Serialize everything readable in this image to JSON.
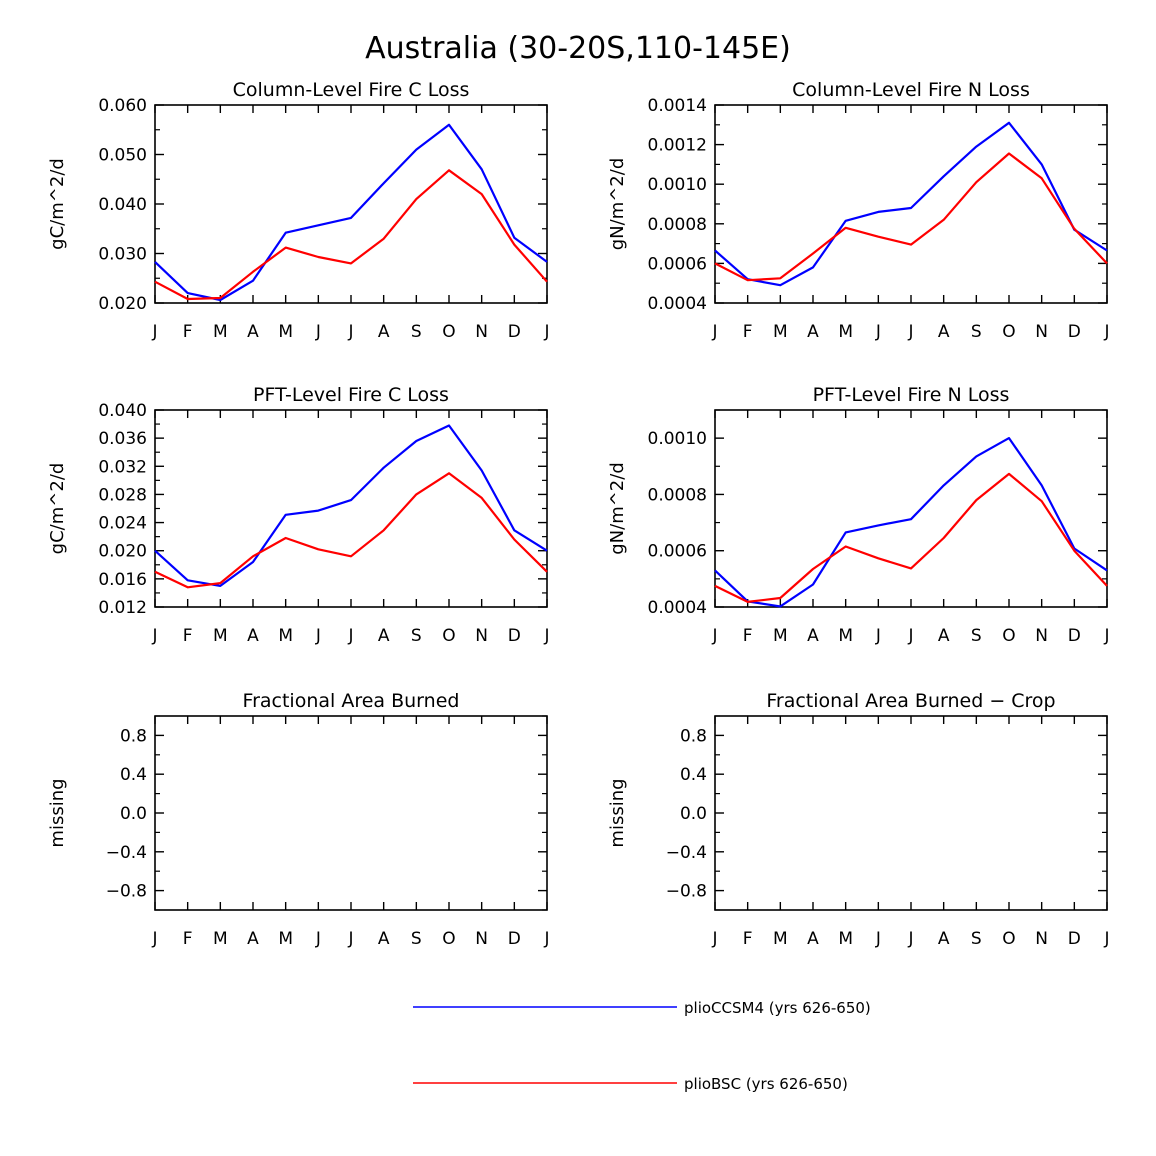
{
  "figure": {
    "title": "Australia (30-20S,110-145E)"
  },
  "series_styles": [
    {
      "name": "plioCCSM4 (yrs 626-650)",
      "color": "#0000ff"
    },
    {
      "name": "plioBSC (yrs 626-650)",
      "color": "#ff0000"
    }
  ],
  "chart_data": [
    {
      "type": "line",
      "title": "Column-Level Fire C Loss",
      "ylabel": "gC/m^2/d",
      "categories": [
        "J",
        "F",
        "M",
        "A",
        "M",
        "J",
        "J",
        "A",
        "S",
        "O",
        "N",
        "D",
        "J"
      ],
      "ylim": [
        0.02,
        0.06
      ],
      "yticks": [
        0.02,
        0.03,
        0.04,
        0.05,
        0.06
      ],
      "ytick_labels": [
        "0.020",
        "0.030",
        "0.040",
        "0.050",
        "0.060"
      ],
      "series": [
        {
          "name": "plioCCSM4 (yrs 626-650)",
          "values": [
            0.0283,
            0.022,
            0.0206,
            0.0245,
            0.0342,
            0.0357,
            0.0372,
            0.0442,
            0.051,
            0.056,
            0.047,
            0.0332,
            0.0283
          ]
        },
        {
          "name": "plioBSC (yrs 626-650)",
          "values": [
            0.0243,
            0.0208,
            0.021,
            0.0263,
            0.0312,
            0.0293,
            0.028,
            0.033,
            0.041,
            0.0468,
            0.042,
            0.0318,
            0.0243
          ]
        }
      ]
    },
    {
      "type": "line",
      "title": "Column-Level Fire N Loss",
      "ylabel": "gN/m^2/d",
      "categories": [
        "J",
        "F",
        "M",
        "A",
        "M",
        "J",
        "J",
        "A",
        "S",
        "O",
        "N",
        "D",
        "J"
      ],
      "ylim": [
        0.0004,
        0.0014
      ],
      "yticks": [
        0.0004,
        0.0006,
        0.0008,
        0.001,
        0.0012,
        0.0014
      ],
      "ytick_labels": [
        "0.0004",
        "0.0006",
        "0.0008",
        "0.0010",
        "0.0012",
        "0.0014"
      ],
      "series": [
        {
          "name": "plioCCSM4 (yrs 626-650)",
          "values": [
            0.000665,
            0.00052,
            0.00049,
            0.00058,
            0.000815,
            0.00086,
            0.00088,
            0.00104,
            0.00119,
            0.00131,
            0.0011,
            0.00077,
            0.000665
          ]
        },
        {
          "name": "plioBSC (yrs 626-650)",
          "values": [
            0.0006,
            0.000515,
            0.000525,
            0.00065,
            0.00078,
            0.000735,
            0.000695,
            0.00082,
            0.00101,
            0.001155,
            0.00103,
            0.000775,
            0.0006
          ]
        }
      ]
    },
    {
      "type": "line",
      "title": "PFT-Level Fire C Loss",
      "ylabel": "gC/m^2/d",
      "categories": [
        "J",
        "F",
        "M",
        "A",
        "M",
        "J",
        "J",
        "A",
        "S",
        "O",
        "N",
        "D",
        "J"
      ],
      "ylim": [
        0.012,
        0.04
      ],
      "yticks": [
        0.012,
        0.016,
        0.02,
        0.024,
        0.028,
        0.032,
        0.036,
        0.04
      ],
      "ytick_labels": [
        "0.012",
        "0.016",
        "0.020",
        "0.024",
        "0.028",
        "0.032",
        "0.036",
        "0.040"
      ],
      "series": [
        {
          "name": "plioCCSM4 (yrs 626-650)",
          "values": [
            0.02,
            0.0158,
            0.015,
            0.0184,
            0.0251,
            0.0257,
            0.0272,
            0.0318,
            0.0356,
            0.0378,
            0.0314,
            0.0229,
            0.02
          ]
        },
        {
          "name": "plioBSC (yrs 626-650)",
          "values": [
            0.017,
            0.0148,
            0.0154,
            0.0192,
            0.0218,
            0.0202,
            0.0192,
            0.0229,
            0.028,
            0.031,
            0.0275,
            0.0216,
            0.017
          ]
        }
      ]
    },
    {
      "type": "line",
      "title": "PFT-Level Fire N Loss",
      "ylabel": "gN/m^2/d",
      "categories": [
        "J",
        "F",
        "M",
        "A",
        "M",
        "J",
        "J",
        "A",
        "S",
        "O",
        "N",
        "D",
        "J"
      ],
      "ylim": [
        0.0004,
        0.0011
      ],
      "yticks": [
        0.0004,
        0.0006,
        0.0008,
        0.001
      ],
      "ytick_labels": [
        "0.0004",
        "0.0006",
        "0.0008",
        "0.0010"
      ],
      "series": [
        {
          "name": "plioCCSM4 (yrs 626-650)",
          "values": [
            0.00053,
            0.00042,
            0.000402,
            0.00048,
            0.000665,
            0.00069,
            0.000712,
            0.000832,
            0.000935,
            0.001,
            0.000832,
            0.000608,
            0.00053
          ]
        },
        {
          "name": "plioBSC (yrs 626-650)",
          "values": [
            0.000475,
            0.000418,
            0.000432,
            0.000535,
            0.000615,
            0.000573,
            0.000537,
            0.000645,
            0.00078,
            0.000873,
            0.000776,
            0.0006,
            0.000475
          ]
        }
      ]
    },
    {
      "type": "line",
      "title": "Fractional Area Burned",
      "ylabel": "missing",
      "categories": [
        "J",
        "F",
        "M",
        "A",
        "M",
        "J",
        "J",
        "A",
        "S",
        "O",
        "N",
        "D",
        "J"
      ],
      "ylim": [
        -1.0,
        1.0
      ],
      "yticks": [
        -0.8,
        -0.4,
        0.0,
        0.4,
        0.8
      ],
      "ytick_labels": [
        "−0.8",
        "−0.4",
        "0.0",
        "0.4",
        "0.8"
      ],
      "series": []
    },
    {
      "type": "line",
      "title": "Fractional Area Burned − Crop",
      "ylabel": "missing",
      "categories": [
        "J",
        "F",
        "M",
        "A",
        "M",
        "J",
        "J",
        "A",
        "S",
        "O",
        "N",
        "D",
        "J"
      ],
      "ylim": [
        -1.0,
        1.0
      ],
      "yticks": [
        -0.8,
        -0.4,
        0.0,
        0.4,
        0.8
      ],
      "ytick_labels": [
        "−0.8",
        "−0.4",
        "0.0",
        "0.4",
        "0.8"
      ],
      "series": []
    }
  ]
}
